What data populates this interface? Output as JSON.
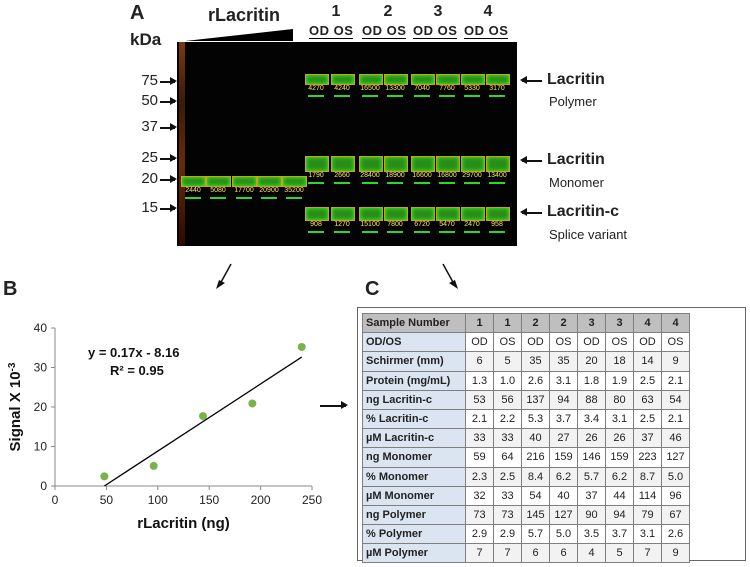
{
  "panel_a": {
    "letter": "A",
    "kda_label": "kDa",
    "rlacritin_label": "rLacritin",
    "lane_numbers": [
      "1",
      "2",
      "3",
      "4"
    ],
    "od_os_labels": [
      "OD OS",
      "OD OS",
      "OD OS",
      "OD OS"
    ],
    "markers": [
      "75",
      "50",
      "37",
      "25",
      "20",
      "15"
    ],
    "polymer_band": {
      "title": "Lacritin",
      "subtitle": "Polymer",
      "values": [
        "4270",
        "4240",
        "16500",
        "13300",
        "7040",
        "7760",
        "5330",
        "3170"
      ]
    },
    "monomer_band": {
      "title": "Lacritin",
      "subtitle": "Monomer",
      "values": [
        "1790",
        "2660",
        "28400",
        "18900",
        "16600",
        "16800",
        "29700",
        "13400"
      ]
    },
    "splice_band": {
      "title": "Lacritin-c",
      "subtitle": "Splice variant",
      "values": [
        "908",
        "1270",
        "15100",
        "7800",
        "6720",
        "5470",
        "2470",
        "958"
      ]
    },
    "standard_values": [
      "2440",
      "5080",
      "17700",
      "20900",
      "35200"
    ]
  },
  "panel_b": {
    "letter": "B",
    "chart_data": {
      "type": "scatter",
      "x": [
        48,
        96,
        144,
        192,
        240
      ],
      "y": [
        2.44,
        5.08,
        17.7,
        20.9,
        35.2
      ],
      "xlabel": "rLacritin (ng)",
      "ylabel": "Signal X 10",
      "ylabel_exp": "-3",
      "xlim": [
        0,
        250
      ],
      "ylim": [
        0,
        40
      ],
      "xticks": [
        "0",
        "50",
        "100",
        "150",
        "200",
        "250"
      ],
      "yticks": [
        "0",
        "10",
        "20",
        "30",
        "40"
      ],
      "fit_line": {
        "slope": 0.17,
        "intercept": -8.16
      },
      "equation": "y = 0.17x - 8.16",
      "r2": "R² = 0.95",
      "point_color": "#78b24a",
      "grid": false
    }
  },
  "panel_c": {
    "letter": "C",
    "header": [
      "Sample Number",
      "1",
      "1",
      "2",
      "2",
      "3",
      "3",
      "4",
      "4"
    ],
    "rows": [
      {
        "label": "OD/OS",
        "values": [
          "OD",
          "OS",
          "OD",
          "OS",
          "OD",
          "OS",
          "OD",
          "OS"
        ]
      },
      {
        "label": "Schirmer (mm)",
        "values": [
          "6",
          "5",
          "35",
          "35",
          "20",
          "18",
          "14",
          "9"
        ]
      },
      {
        "label": "Protein (mg/mL)",
        "values": [
          "1.3",
          "1.0",
          "2.6",
          "3.1",
          "1.8",
          "1.9",
          "2.5",
          "2.1"
        ]
      },
      {
        "label": "ng Lacritin-c",
        "values": [
          "53",
          "56",
          "137",
          "94",
          "88",
          "80",
          "63",
          "54"
        ]
      },
      {
        "label": "% Lacritin-c",
        "values": [
          "2.1",
          "2.2",
          "5.3",
          "3.7",
          "3.4",
          "3.1",
          "2.5",
          "2.1"
        ]
      },
      {
        "label": "µM Lacritin-c",
        "values": [
          "33",
          "33",
          "40",
          "27",
          "26",
          "26",
          "37",
          "46"
        ]
      },
      {
        "label": "ng Monomer",
        "values": [
          "59",
          "64",
          "216",
          "159",
          "146",
          "159",
          "223",
          "127"
        ]
      },
      {
        "label": "% Monomer",
        "values": [
          "2.3",
          "2.5",
          "8.4",
          "6.2",
          "5.7",
          "6.2",
          "8.7",
          "5.0"
        ]
      },
      {
        "label": "µM Monomer",
        "values": [
          "32",
          "33",
          "54",
          "40",
          "37",
          "44",
          "114",
          "96"
        ]
      },
      {
        "label": "ng Polymer",
        "values": [
          "73",
          "73",
          "145",
          "127",
          "90",
          "94",
          "79",
          "67"
        ]
      },
      {
        "label": "% Polymer",
        "values": [
          "2.9",
          "2.9",
          "5.7",
          "5.0",
          "3.5",
          "3.7",
          "3.1",
          "2.6"
        ]
      },
      {
        "label": "µM Polymer",
        "values": [
          "7",
          "7",
          "6",
          "6",
          "4",
          "5",
          "7",
          "9"
        ]
      }
    ]
  }
}
